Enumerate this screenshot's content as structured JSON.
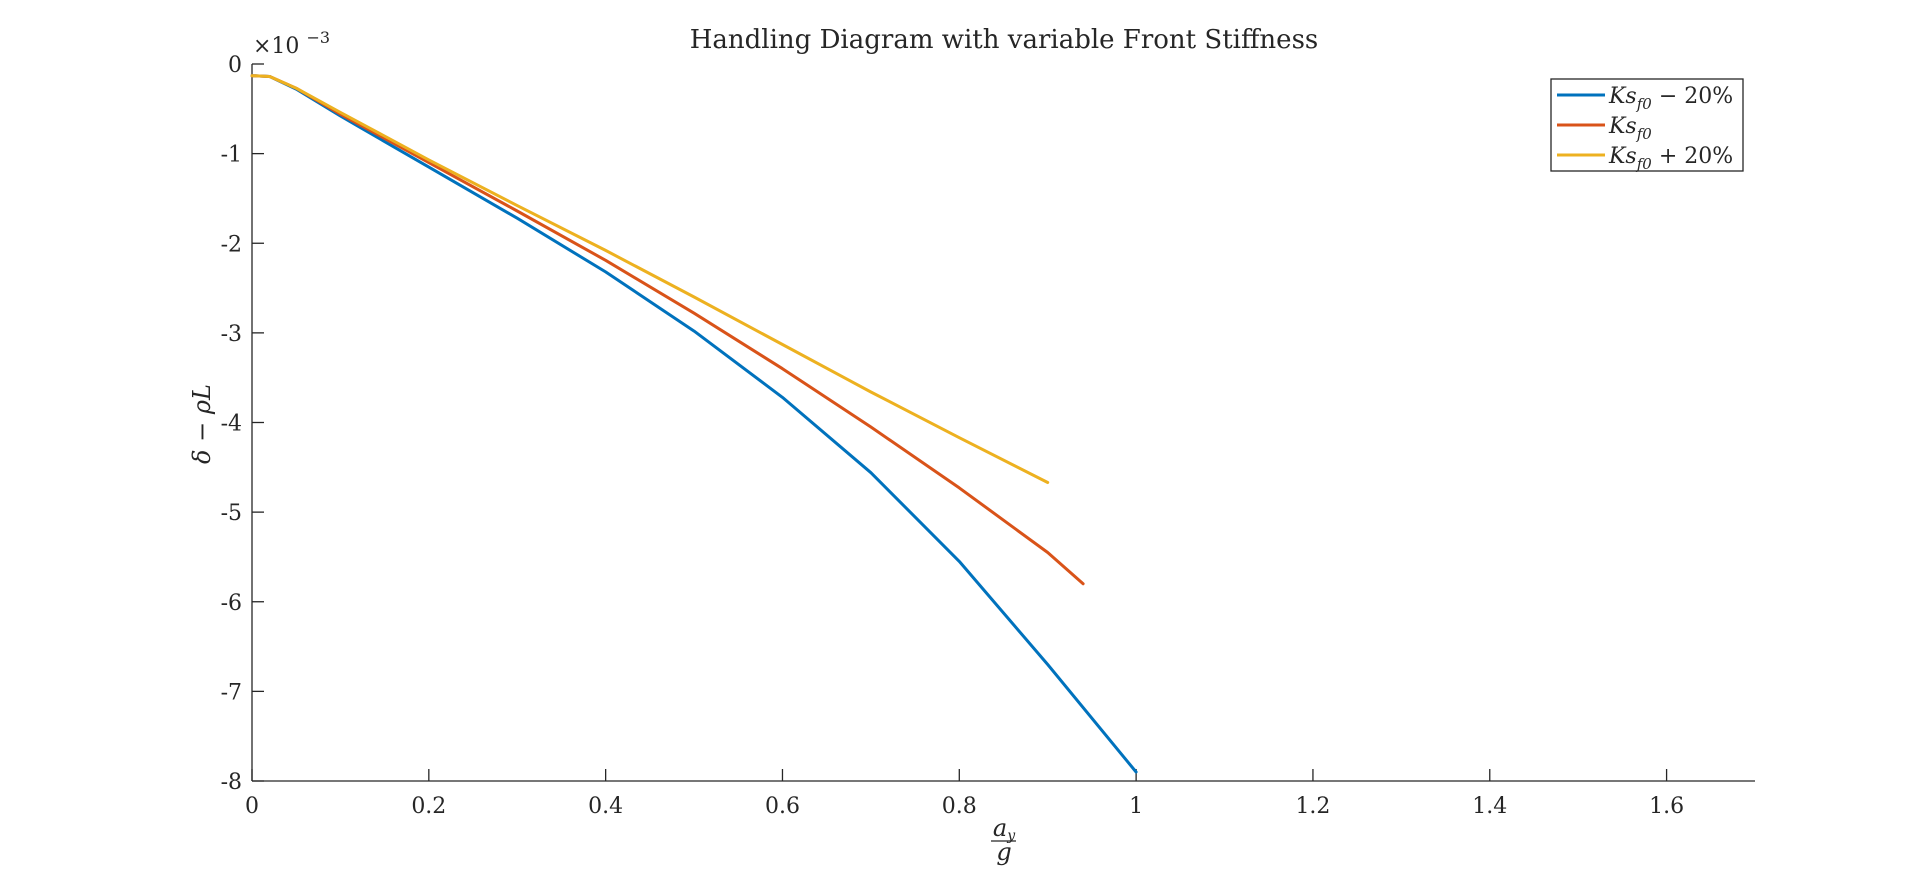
{
  "chart_data": {
    "type": "line",
    "title": "Handling Diagram with variable Front Stiffness",
    "xlabel_num": "a",
    "xlabel_num_sub": "y",
    "xlabel_den": "g",
    "ylabel": "δ − ρL",
    "y_exponent_base": "×10",
    "y_exponent": "−3",
    "xlim": [
      0,
      1.7
    ],
    "ylim": [
      -8,
      0
    ],
    "xticks": [
      "0",
      "0.2",
      "0.4",
      "0.6",
      "0.8",
      "1",
      "1.2",
      "1.4",
      "1.6"
    ],
    "xtick_values": [
      0,
      0.2,
      0.4,
      0.6,
      0.8,
      1.0,
      1.2,
      1.4,
      1.6
    ],
    "yticks": [
      "0",
      "-1",
      "-2",
      "-3",
      "-4",
      "-5",
      "-6",
      "-7",
      "-8"
    ],
    "ytick_values": [
      0,
      -1,
      -2,
      -3,
      -4,
      -5,
      -6,
      -7,
      -8
    ],
    "grid": false,
    "legend_position": "top-right",
    "series": [
      {
        "name": "Ks_{f0} − 20%",
        "legend_base": "Ks",
        "legend_sub": "f0",
        "legend_suffix": " − 20%",
        "color": "#0072BD",
        "points": [
          [
            0,
            -0.13
          ],
          [
            0.02,
            -0.14
          ],
          [
            0.05,
            -0.28
          ],
          [
            0.1,
            -0.58
          ],
          [
            0.2,
            -1.15
          ],
          [
            0.3,
            -1.72
          ],
          [
            0.4,
            -2.32
          ],
          [
            0.5,
            -2.98
          ],
          [
            0.6,
            -3.72
          ],
          [
            0.7,
            -4.56
          ],
          [
            0.8,
            -5.55
          ],
          [
            0.9,
            -6.7
          ],
          [
            1.0,
            -7.9
          ]
        ]
      },
      {
        "name": "Ks_{f0}",
        "legend_base": "Ks",
        "legend_sub": "f0",
        "legend_suffix": "",
        "color": "#D95319",
        "points": [
          [
            0,
            -0.13
          ],
          [
            0.02,
            -0.14
          ],
          [
            0.05,
            -0.27
          ],
          [
            0.1,
            -0.56
          ],
          [
            0.2,
            -1.1
          ],
          [
            0.3,
            -1.64
          ],
          [
            0.4,
            -2.19
          ],
          [
            0.5,
            -2.78
          ],
          [
            0.6,
            -3.4
          ],
          [
            0.7,
            -4.05
          ],
          [
            0.8,
            -4.73
          ],
          [
            0.9,
            -5.45
          ],
          [
            0.94,
            -5.8
          ]
        ]
      },
      {
        "name": "Ks_{f0} + 20%",
        "legend_base": "Ks",
        "legend_sub": "f0",
        "legend_suffix": " + 20%",
        "color": "#EDB120",
        "points": [
          [
            0,
            -0.13
          ],
          [
            0.02,
            -0.14
          ],
          [
            0.05,
            -0.27
          ],
          [
            0.1,
            -0.54
          ],
          [
            0.2,
            -1.07
          ],
          [
            0.3,
            -1.58
          ],
          [
            0.4,
            -2.08
          ],
          [
            0.5,
            -2.6
          ],
          [
            0.6,
            -3.13
          ],
          [
            0.7,
            -3.66
          ],
          [
            0.8,
            -4.17
          ],
          [
            0.9,
            -4.67
          ]
        ]
      }
    ]
  }
}
